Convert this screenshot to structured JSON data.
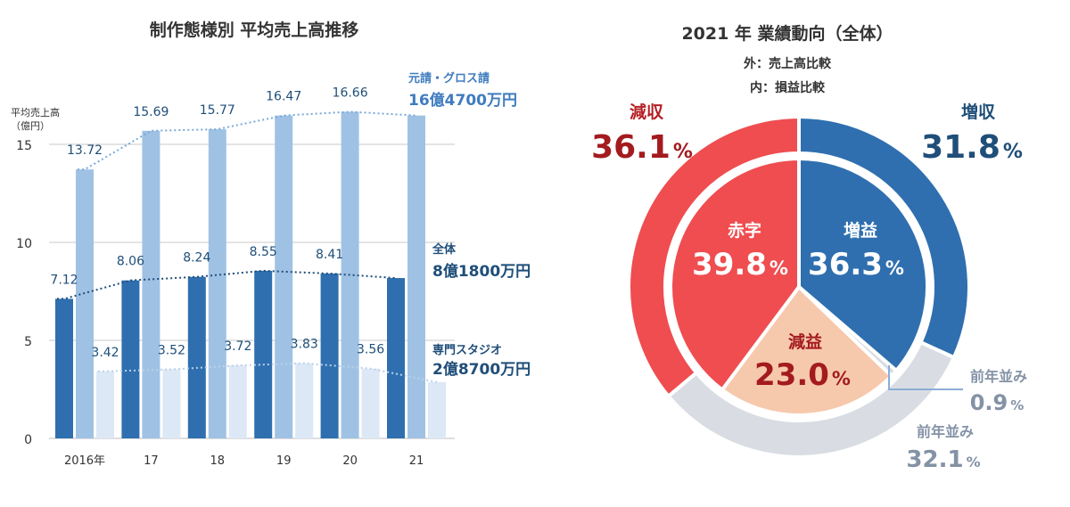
{
  "chart_data": [
    {
      "type": "bar",
      "title": "制作態様別 平均売上高推移",
      "ylabel": "平均売上高（億円）",
      "ylabel_lines": [
        "平均売上高",
        "（億円）"
      ],
      "ylim": [
        0,
        15
      ],
      "yticks": [
        "0",
        "5",
        "10",
        "15"
      ],
      "categories": [
        "2016年",
        "17",
        "18",
        "19",
        "20",
        "21"
      ],
      "grid": true,
      "series": [
        {
          "name": "全体",
          "values": [
            7.12,
            8.06,
            8.24,
            8.55,
            8.41,
            8.18
          ],
          "labels": [
            "7.12",
            "8.06",
            "8.24",
            "8.55",
            "8.41",
            ""
          ],
          "color": "#2f6faf"
        },
        {
          "name": "元請・グロス請",
          "values": [
            13.72,
            15.69,
            15.77,
            16.47,
            16.66,
            16.47
          ],
          "labels": [
            "13.72",
            "15.69",
            "15.77",
            "16.47",
            "16.66",
            ""
          ],
          "color": "#9fc2e4"
        },
        {
          "name": "専門スタジオ",
          "values": [
            3.42,
            3.52,
            3.72,
            3.83,
            3.56,
            2.87
          ],
          "labels": [
            "3.42",
            "3.52",
            "3.72",
            "3.83",
            "3.56",
            ""
          ],
          "color": "#dce8f5"
        }
      ],
      "annotations": [
        {
          "series": "元請・グロス請",
          "name": "元請・グロス請",
          "value": "16億4700万円",
          "color": "#3f7cbf"
        },
        {
          "series": "全体",
          "name": "全体",
          "value": "8億1800万円",
          "color": "#1f4e79"
        },
        {
          "series": "専門スタジオ",
          "name": "専門スタジオ",
          "value": "2億8700万円",
          "color": "#1f4e79"
        }
      ]
    },
    {
      "type": "pie",
      "title": "2021 年 業績動向（全体）",
      "subtitle_lines": [
        "外：売上高比較",
        "内：損益比較"
      ],
      "outer": [
        {
          "label": "増収",
          "value": 31.8,
          "display": "31.8",
          "color": "#2f6faf",
          "label_color": "#1f4e79",
          "value_color": "#1f4e79"
        },
        {
          "label": "前年並み",
          "value": 32.1,
          "display": "32.1",
          "color": "#d9dde3",
          "label_color": "#8492a6",
          "value_color": "#8492a6"
        },
        {
          "label": "減収",
          "value": 36.1,
          "display": "36.1",
          "color": "#ef4d50",
          "label_color": "#b52025",
          "value_color": "#a31b1f"
        }
      ],
      "inner": [
        {
          "label": "増益",
          "value": 36.3,
          "display": "36.3",
          "color": "#2f6faf",
          "text_color": "#ffffff"
        },
        {
          "label": "前年並み",
          "value": 0.9,
          "display": "0.9",
          "color": "#d9dde3",
          "text_color": "#8492a6"
        },
        {
          "label": "減益",
          "value": 23.0,
          "display": "23.0",
          "color": "#f6c9ad",
          "text_color": "#a31b1f"
        },
        {
          "label": "赤字",
          "value": 39.8,
          "display": "39.8",
          "color": "#ef4d50",
          "text_color": "#ffffff"
        }
      ],
      "percent_sign": "%"
    }
  ]
}
